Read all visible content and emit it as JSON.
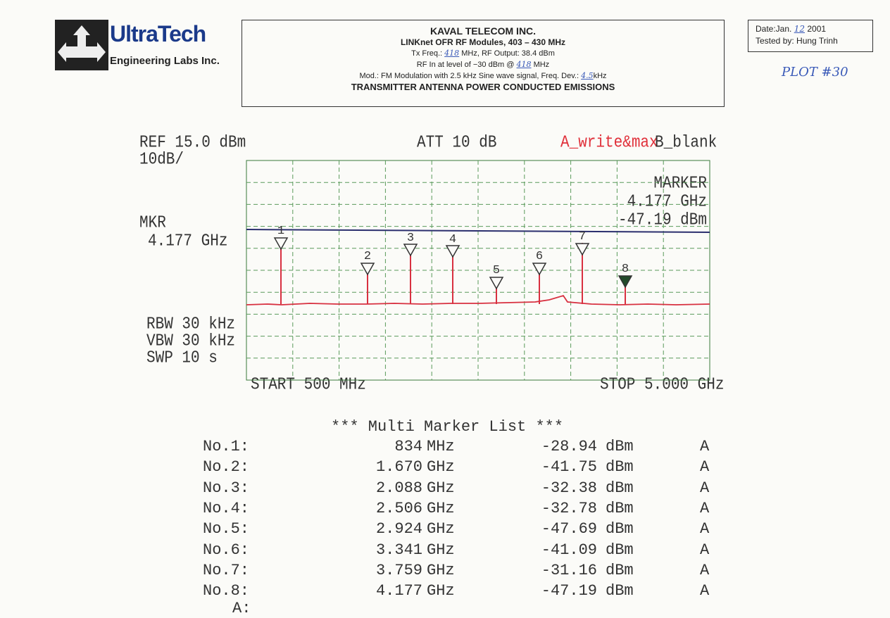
{
  "header": {
    "logo": {
      "name": "UltraTech",
      "sub": "Engineering Labs Inc."
    },
    "box": {
      "company": "KAVAL TELECOM INC.",
      "product": "LINKnet OFR RF Modules, 403 – 430 MHz",
      "line1": [
        "Tx Freq.:",
        "418",
        "MHz, RF Output: 38.4 dBm"
      ],
      "line2": [
        "RF In at level of −30 dBm @",
        "418",
        "MHz"
      ],
      "line3": [
        "Mod.: FM Modulation with 2.5 kHz Sine wave signal, Freq. Dev.:",
        "4.5",
        "kHz"
      ],
      "title": "TRANSMITTER ANTENNA POWER CONDUCTED EMISSIONS"
    },
    "date": {
      "label": "Date:Jan.",
      "day": "12",
      "year": "2001",
      "tested_label": "Tested by:",
      "tester": "Hung Trinh"
    },
    "plot_no": "PLOT #30"
  },
  "plot": {
    "ref": "REF 15.0 dBm",
    "scale": "10dB/",
    "att": "ATT 10 dB",
    "trace_a": "A_write&max",
    "trace_b": "B_blank",
    "mkr": "MKR",
    "mkr_freq": "4.177 GHz",
    "marker_label": "MARKER",
    "marker_freq": "4.177 GHz",
    "marker_level": "-47.19 dBm",
    "rbw": "RBW 30 kHz",
    "vbw": "VBW 30 kHz",
    "swp": "SWP 10 s",
    "start": "START 500 MHz",
    "stop": "STOP 5.000 GHz",
    "markers": [
      "1",
      "2",
      "3",
      "4",
      "5",
      "6",
      "7",
      "8"
    ]
  },
  "marker_list": {
    "title": "*** Multi Marker List ***",
    "rows": [
      [
        "No.1:",
        "834",
        "MHz",
        "-28.94",
        "dBm",
        "A"
      ],
      [
        "No.2:",
        "1.670",
        "GHz",
        "-41.75",
        "dBm",
        "A"
      ],
      [
        "No.3:",
        "2.088",
        "GHz",
        "-32.38",
        "dBm",
        "A"
      ],
      [
        "No.4:",
        "2.506",
        "GHz",
        "-32.78",
        "dBm",
        "A"
      ],
      [
        "No.5:",
        "2.924",
        "GHz",
        "-47.69",
        "dBm",
        "A"
      ],
      [
        "No.6:",
        "3.341",
        "GHz",
        "-41.09",
        "dBm",
        "A"
      ],
      [
        "No.7:",
        "3.759",
        "GHz",
        "-31.16",
        "dBm",
        "A"
      ],
      [
        "No.8:",
        "4.177",
        "GHz",
        "-47.19",
        "dBm",
        "A"
      ]
    ],
    "footer": "A:"
  }
}
